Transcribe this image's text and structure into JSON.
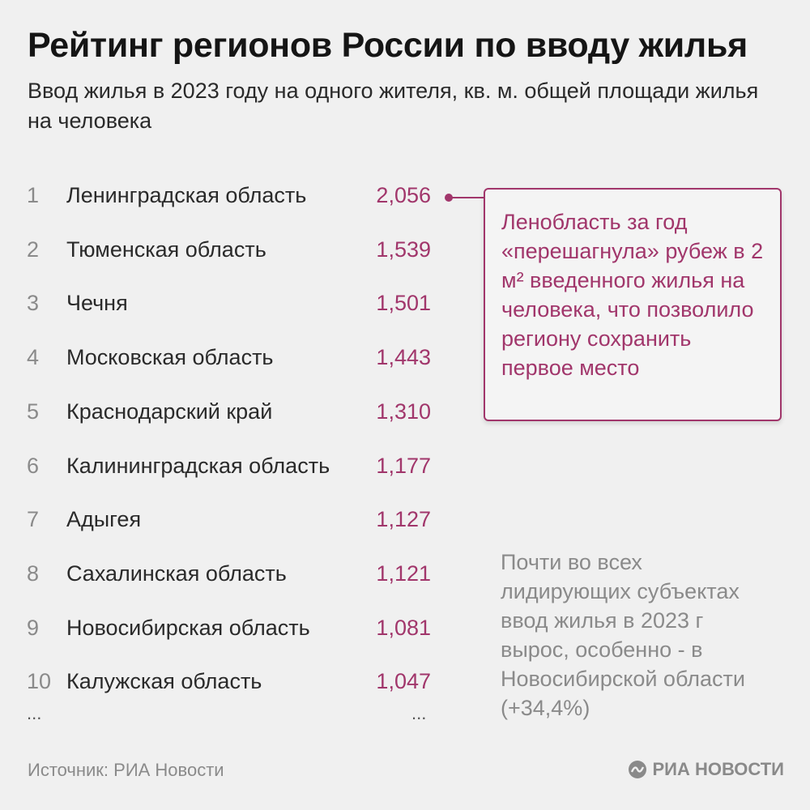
{
  "title": "Рейтинг регионов России по вводу жилья",
  "subtitle": "Ввод жилья в 2023 году на одного жителя, кв. м. общей площади жилья на человека",
  "chart_data": {
    "type": "table",
    "columns": [
      "rank",
      "region",
      "value"
    ],
    "rows": [
      {
        "rank": "1",
        "region": "Ленинградская область",
        "value": "2,056"
      },
      {
        "rank": "2",
        "region": "Тюменская область",
        "value": "1,539"
      },
      {
        "rank": "3",
        "region": "Чечня",
        "value": "1,501"
      },
      {
        "rank": "4",
        "region": "Московская область",
        "value": "1,443"
      },
      {
        "rank": "5",
        "region": "Краснодарский край",
        "value": "1,310"
      },
      {
        "rank": "6",
        "region": "Калининградская область",
        "value": "1,177"
      },
      {
        "rank": "7",
        "region": "Адыгея",
        "value": "1,127"
      },
      {
        "rank": "8",
        "region": "Сахалинская область",
        "value": "1,121"
      },
      {
        "rank": "9",
        "region": "Новосибирская область",
        "value": "1,081"
      },
      {
        "rank": "10",
        "region": "Калужская область",
        "value": "1,047"
      }
    ],
    "continuation_left": "...",
    "continuation_right": "..."
  },
  "callout": {
    "text": "Ленобласть за год «перешагнула» рубеж в 2 м² введенного жилья на человека, что позволило региону сохранить первое место"
  },
  "note": {
    "text": "Почти во всех лидирующих субъектах ввод жилья в 2023 г вырос, особенно - в Новосибирской области (+34,4%)"
  },
  "source": "Источник: РИА Новости",
  "logo": {
    "text": "РИА НОВОСТИ",
    "icon": "ria-logo-icon"
  },
  "colors": {
    "accent": "#a1366b",
    "background": "#f0f0f0",
    "muted": "#8a8a8a"
  }
}
